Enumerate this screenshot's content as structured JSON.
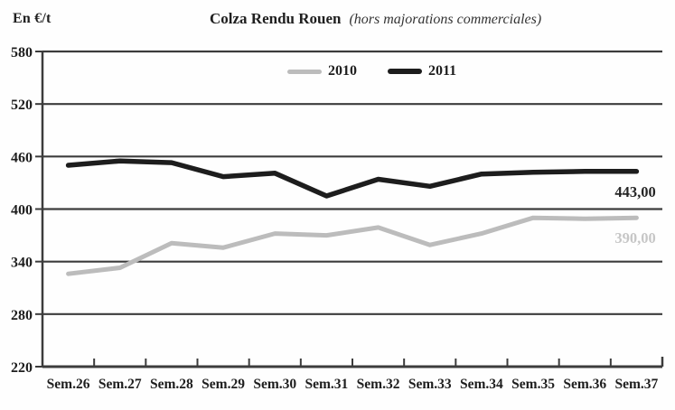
{
  "header": {
    "unit_label": "En €/t",
    "title": "Colza Rendu Rouen",
    "subtitle": "(hors majorations commerciales)"
  },
  "chart_data": {
    "type": "line",
    "title": "Colza Rendu Rouen (hors majorations commerciales)",
    "ylabel": "En €/t",
    "xlabel": "",
    "categories": [
      "Sem.26",
      "Sem.27",
      "Sem.28",
      "Sem.29",
      "Sem.30",
      "Sem.31",
      "Sem.32",
      "Sem.33",
      "Sem.34",
      "Sem.35",
      "Sem.36",
      "Sem.37"
    ],
    "series": [
      {
        "name": "2010",
        "color": "#bcbcbc",
        "values": [
          326,
          333,
          361,
          356,
          372,
          370,
          379,
          359,
          372,
          390,
          389,
          390
        ],
        "end_label": "390,00",
        "end_label_color": "#c6c6c6"
      },
      {
        "name": "2011",
        "color": "#1d1d1d",
        "values": [
          450,
          455,
          453,
          437,
          441,
          415,
          434,
          426,
          440,
          442,
          443,
          443
        ],
        "end_label": "443,00",
        "end_label_color": "#242424"
      }
    ],
    "ylim": [
      220,
      580
    ],
    "yticks": [
      220,
      280,
      340,
      400,
      460,
      520,
      580
    ],
    "grid": true,
    "legend_position": "top-center",
    "axis_color": "#3c3c3c",
    "tick_label_color": "#1e1e1e"
  }
}
